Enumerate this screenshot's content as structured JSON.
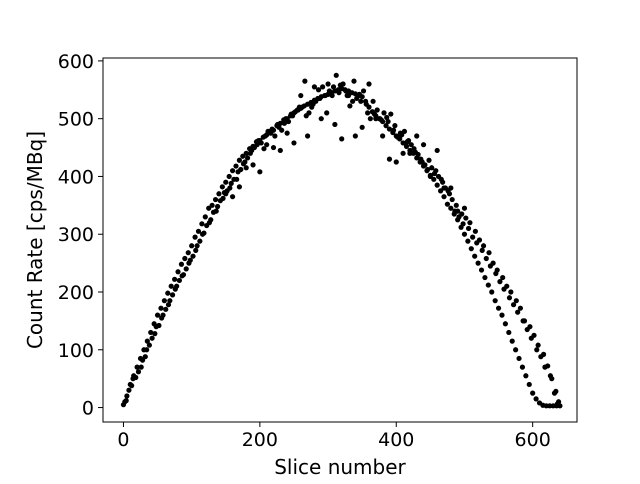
{
  "chart_data": {
    "type": "scatter",
    "title": "",
    "xlabel": "Slice number",
    "ylabel": "Count Rate [cps/MBq]",
    "xlim": [
      -30,
      665
    ],
    "ylim": [
      -25,
      605
    ],
    "xticks": [
      0,
      200,
      400,
      600
    ],
    "yticks": [
      0,
      100,
      200,
      300,
      400,
      500,
      600
    ],
    "x_tick_labels": [
      "0",
      "200",
      "400",
      "600"
    ],
    "y_tick_labels": [
      "0",
      "100",
      "200",
      "300",
      "400",
      "500",
      "600"
    ],
    "grid": false,
    "legend": "none",
    "marker_color": "#000000",
    "series": [
      {
        "x": [
          0,
          5,
          10,
          15,
          20,
          25,
          30,
          35,
          40,
          45,
          50,
          55,
          60,
          65,
          70,
          75,
          80,
          85,
          90,
          95,
          100,
          105,
          110,
          115,
          120,
          125,
          130,
          135,
          140,
          145,
          150,
          155,
          160,
          165,
          170,
          175,
          180,
          185,
          190,
          195,
          200,
          205,
          210,
          215,
          220,
          225,
          230,
          235,
          240,
          245,
          250,
          255,
          260,
          265,
          270,
          275,
          280,
          285,
          290,
          295,
          300,
          305,
          310,
          315,
          320,
          325,
          330,
          335,
          340,
          345,
          350,
          355,
          360,
          365,
          370,
          375,
          380,
          385,
          390,
          395,
          400,
          405,
          410,
          415,
          420,
          425,
          430,
          435,
          440,
          445,
          450,
          455,
          460,
          465,
          470,
          475,
          480,
          485,
          490,
          495,
          500,
          505,
          510,
          515,
          520,
          525,
          530,
          535,
          540,
          545,
          550,
          555,
          560,
          565,
          570,
          575,
          580,
          585,
          590,
          595,
          600,
          605,
          610,
          615,
          620,
          625,
          630,
          635,
          640
        ],
        "y": [
          5,
          20,
          40,
          55,
          70,
          85,
          100,
          115,
          130,
          145,
          160,
          172,
          185,
          198,
          210,
          222,
          235,
          248,
          258,
          268,
          280,
          295,
          305,
          318,
          330,
          345,
          350,
          360,
          370,
          382,
          390,
          400,
          410,
          418,
          428,
          435,
          440,
          448,
          452,
          460,
          462,
          468,
          472,
          478,
          480,
          488,
          492,
          498,
          500,
          505,
          510,
          515,
          518,
          522,
          525,
          528,
          532,
          535,
          538,
          540,
          542,
          545,
          548,
          550,
          552,
          550,
          548,
          545,
          543,
          540,
          538,
          530,
          520,
          512,
          505,
          500,
          495,
          488,
          482,
          476,
          470,
          465,
          458,
          452,
          445,
          440,
          432,
          425,
          418,
          410,
          402,
          395,
          385,
          375,
          365,
          352,
          345,
          335,
          325,
          312,
          300,
          288,
          275,
          262,
          250,
          238,
          225,
          212,
          200,
          185,
          172,
          160,
          145,
          130,
          115,
          100,
          85,
          70,
          55,
          40,
          25,
          15,
          8,
          4,
          3,
          3,
          3,
          3,
          3
        ]
      },
      {
        "x": [
          2,
          8,
          14,
          22,
          28,
          34,
          42,
          48,
          56,
          62,
          68,
          76,
          82,
          88,
          96,
          102,
          108,
          116,
          122,
          128,
          136,
          142,
          148,
          156,
          162,
          168,
          176,
          182,
          188,
          196,
          202,
          208,
          216,
          222,
          228,
          236,
          242,
          248,
          256,
          262,
          268,
          276,
          282,
          288,
          296,
          302,
          308,
          316,
          322,
          328,
          336,
          342,
          348,
          356,
          362,
          368,
          376,
          382,
          388,
          396,
          402,
          408,
          416,
          422,
          428,
          436,
          442,
          448,
          456,
          462,
          468,
          476,
          482,
          488,
          496,
          502,
          508,
          516,
          522,
          528,
          536,
          542,
          548,
          556,
          562,
          568,
          576,
          582,
          588,
          596,
          602,
          608,
          616,
          622,
          628,
          634,
          638
        ],
        "y": [
          10,
          30,
          50,
          62,
          82,
          100,
          120,
          140,
          155,
          170,
          185,
          205,
          220,
          230,
          250,
          262,
          280,
          300,
          315,
          325,
          340,
          358,
          372,
          380,
          395,
          408,
          422,
          432,
          445,
          455,
          458,
          470,
          475,
          470,
          485,
          492,
          495,
          505,
          515,
          520,
          505,
          520,
          530,
          535,
          540,
          548,
          555,
          545,
          560,
          540,
          530,
          535,
          530,
          525,
          500,
          508,
          500,
          510,
          495,
          480,
          468,
          472,
          460,
          455,
          442,
          430,
          420,
          428,
          405,
          400,
          390,
          375,
          360,
          350,
          335,
          328,
          320,
          305,
          290,
          280,
          268,
          250,
          238,
          225,
          210,
          200,
          185,
          172,
          150,
          140,
          125,
          108,
          92,
          72,
          50,
          28,
          10
        ]
      },
      {
        "x": [
          4,
          12,
          18,
          26,
          32,
          38,
          46,
          52,
          58,
          66,
          72,
          78,
          86,
          92,
          98,
          106,
          112,
          118,
          126,
          132,
          138,
          146,
          152,
          158,
          166,
          172,
          178,
          186,
          192,
          198,
          206,
          212,
          218,
          226,
          232,
          238,
          246,
          252,
          258,
          266,
          272,
          278,
          286,
          292,
          298,
          306,
          312,
          318,
          326,
          332,
          338,
          346,
          352,
          358,
          366,
          372,
          378,
          386,
          392,
          398,
          406,
          412,
          418,
          426,
          432,
          438,
          446,
          452,
          458,
          466,
          472,
          478,
          486,
          492,
          498,
          506,
          512,
          518,
          526,
          532,
          538,
          546,
          552,
          558,
          566,
          572,
          578,
          586,
          592,
          598,
          606,
          612,
          618,
          626,
          632,
          636
        ],
        "y": [
          12,
          38,
          52,
          70,
          88,
          108,
          128,
          142,
          160,
          178,
          195,
          210,
          228,
          240,
          255,
          272,
          288,
          302,
          320,
          338,
          348,
          362,
          375,
          388,
          395,
          412,
          425,
          440,
          450,
          462,
          448,
          478,
          482,
          490,
          480,
          500,
          508,
          512,
          520,
          565,
          510,
          525,
          550,
          555,
          510,
          540,
          575,
          558,
          548,
          522,
          565,
          542,
          548,
          510,
          530,
          515,
          498,
          502,
          508,
          488,
          475,
          478,
          462,
          448,
          438,
          425,
          412,
          415,
          410,
          395,
          380,
          370,
          340,
          330,
          318,
          310,
          295,
          285,
          272,
          258,
          245,
          232,
          218,
          205,
          190,
          178,
          165,
          150,
          135,
          120,
          100,
          88,
          70,
          55,
          25,
          6
        ]
      },
      {
        "x": [
          150,
          160,
          170,
          180,
          190,
          200,
          210,
          220,
          230,
          240,
          250,
          260,
          270,
          280,
          290,
          300,
          310,
          320,
          330,
          340,
          350,
          360,
          370,
          380,
          390,
          400,
          410,
          420,
          430,
          440,
          450,
          460,
          470,
          480,
          490,
          500
        ],
        "y": [
          370,
          365,
          382,
          415,
          420,
          408,
          455,
          450,
          445,
          475,
          458,
          540,
          470,
          555,
          500,
          560,
          490,
          465,
          540,
          470,
          485,
          560,
          500,
          470,
          430,
          425,
          440,
          440,
          470,
          455,
          400,
          445,
          380,
          380,
          340,
          345
        ]
      }
    ]
  }
}
